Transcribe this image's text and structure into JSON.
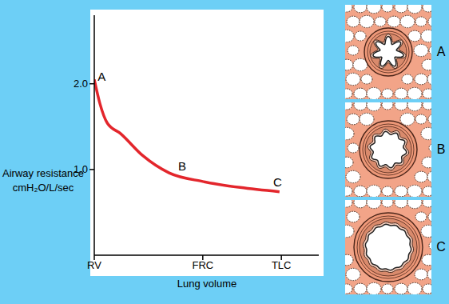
{
  "chart_data": {
    "type": "line",
    "xlabel": "Lung volume",
    "ylabel": [
      "Airway resistance",
      "cmH₂O/L/sec"
    ],
    "x": [
      0,
      3,
      7,
      14,
      26,
      40,
      58,
      78,
      99
    ],
    "values": [
      2.05,
      1.77,
      1.54,
      1.42,
      1.16,
      0.96,
      0.86,
      0.79,
      0.74
    ],
    "color": "#e3262c",
    "marker": "none",
    "grid": false,
    "xlim": [
      0,
      120
    ],
    "xticks": [
      {
        "value": 0,
        "label": "RV"
      },
      {
        "value": 58,
        "label": "FRC"
      },
      {
        "value": 100,
        "label": "TLC"
      }
    ],
    "ylim": [
      0,
      2.8
    ],
    "yticks": [
      {
        "value": 1,
        "label": "1.0"
      },
      {
        "value": 2,
        "label": "2.0"
      }
    ],
    "annotations": [
      {
        "text": "A",
        "x": 4,
        "y": 2.08
      },
      {
        "text": "B",
        "x": 47,
        "y": 1.04
      },
      {
        "text": "C",
        "x": 98,
        "y": 0.85
      }
    ]
  },
  "side_labels": [
    "A",
    "B",
    "C"
  ]
}
